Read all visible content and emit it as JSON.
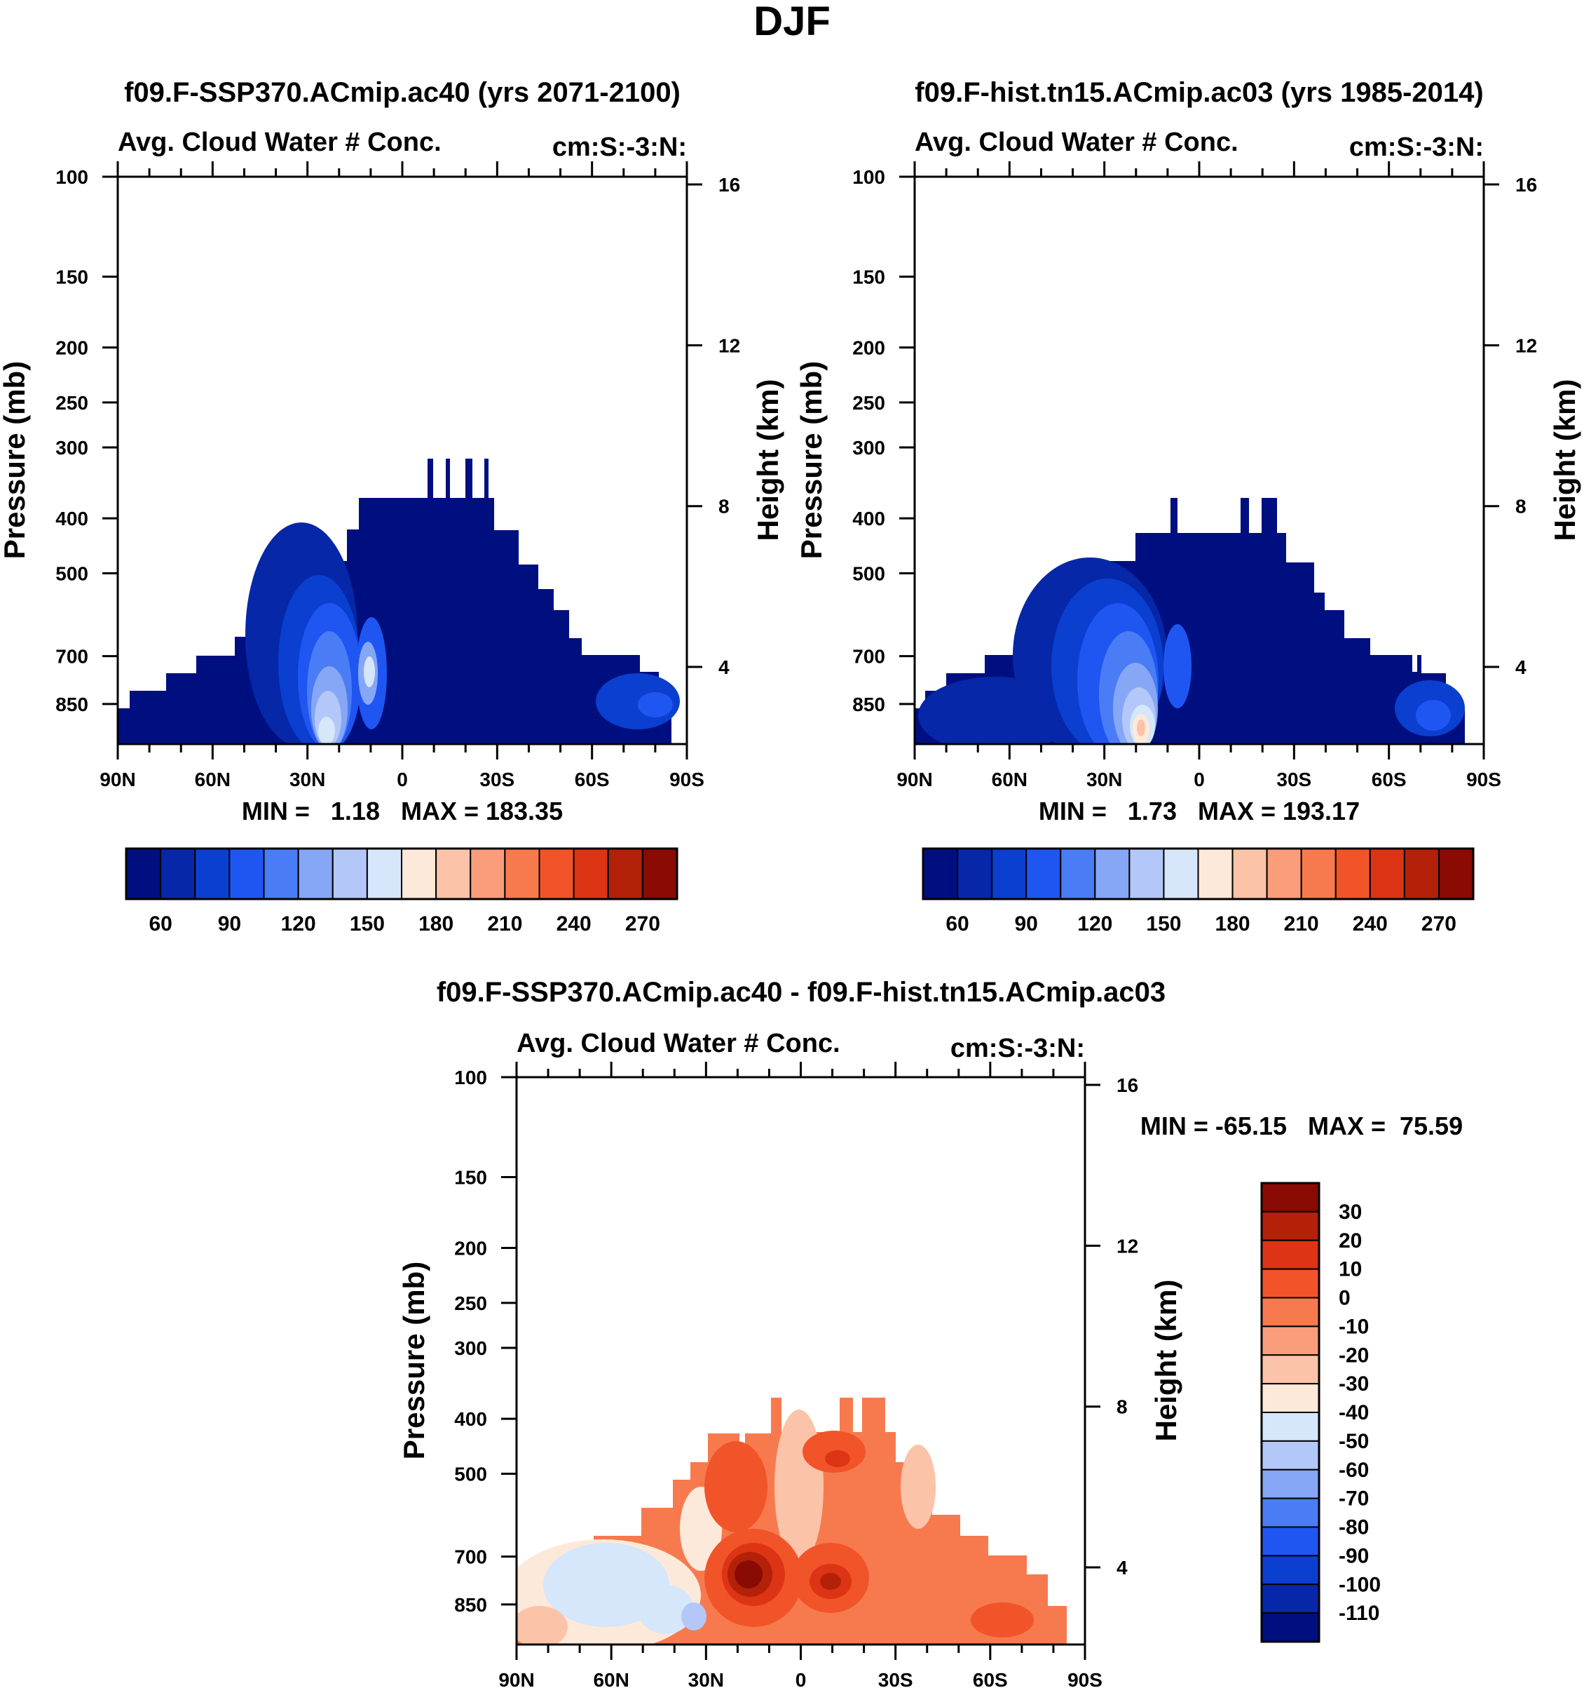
{
  "figure": {
    "title": "DJF"
  },
  "axes": {
    "pressure_ticks": [
      100,
      150,
      200,
      250,
      300,
      400,
      500,
      700,
      850
    ],
    "height_ticks": [
      4,
      8,
      12,
      16
    ],
    "lat_ticks": [
      "90N",
      "60N",
      "30N",
      "0",
      "30S",
      "60S",
      "90S"
    ],
    "ylabel": "Pressure (mb)",
    "ylabel_right": "Height (km)"
  },
  "chart_data": [
    {
      "type": "heatmap",
      "title": "f09.F-SSP370.ACmip.ac40 (yrs 2071-2100)",
      "subtitle_left": "Avg. Cloud Water # Conc.",
      "subtitle_right": "cm:S:-3:N:",
      "stats": "MIN =   1.18   MAX = 183.35",
      "xlabel": "",
      "ylabel": "Pressure (mb)",
      "ylabel_right": "Height (km)",
      "ylim": [
        1000,
        100
      ],
      "xlim": [
        90,
        -90
      ],
      "levels": [
        60,
        75,
        90,
        105,
        120,
        135,
        150,
        165,
        180,
        195,
        210,
        225,
        240,
        255,
        270
      ],
      "colorbar_labels": [
        "60",
        "90",
        "120",
        "150",
        "180",
        "210",
        "240",
        "270"
      ]
    },
    {
      "type": "heatmap",
      "title": "f09.F-hist.tn15.ACmip.ac03 (yrs 1985-2014)",
      "subtitle_left": "Avg. Cloud Water # Conc.",
      "subtitle_right": "cm:S:-3:N:",
      "stats": "MIN =   1.73   MAX = 193.17",
      "xlabel": "",
      "ylabel": "Pressure (mb)",
      "ylabel_right": "Height (km)",
      "ylim": [
        1000,
        100
      ],
      "xlim": [
        90,
        -90
      ],
      "levels": [
        60,
        75,
        90,
        105,
        120,
        135,
        150,
        165,
        180,
        195,
        210,
        225,
        240,
        255,
        270
      ],
      "colorbar_labels": [
        "60",
        "90",
        "120",
        "150",
        "180",
        "210",
        "240",
        "270"
      ]
    },
    {
      "type": "heatmap",
      "title": "f09.F-SSP370.ACmip.ac40 - f09.F-hist.tn15.ACmip.ac03",
      "subtitle_left": "Avg. Cloud Water # Conc.",
      "subtitle_right": "cm:S:-3:N:",
      "stats": "MIN = -65.15   MAX =  75.59",
      "xlabel": "",
      "ylabel": "Pressure (mb)",
      "ylabel_right": "Height (km)",
      "ylim": [
        1000,
        100
      ],
      "xlim": [
        90,
        -90
      ],
      "levels": [
        -110,
        -100,
        -90,
        -80,
        -70,
        -60,
        -50,
        -40,
        -30,
        -20,
        -10,
        0,
        10,
        20,
        30
      ],
      "colorbar_labels": [
        "30",
        "20",
        "10",
        "0",
        "-10",
        "-20",
        "-30",
        "-40",
        "-50",
        "-60",
        "-70",
        "-80",
        "-90",
        "-100",
        "-110"
      ]
    }
  ],
  "colors": {
    "colormap": [
      "#000f80",
      "#0527a8",
      "#0a3fd0",
      "#1f56f2",
      "#4a7cf5",
      "#86a7f5",
      "#b3c8f8",
      "#d6e6fb",
      "#fde9d9",
      "#fbc3a8",
      "#f99d7a",
      "#f77a4e",
      "#f2542a",
      "#dc3414",
      "#b32108",
      "#8a0a04"
    ]
  }
}
